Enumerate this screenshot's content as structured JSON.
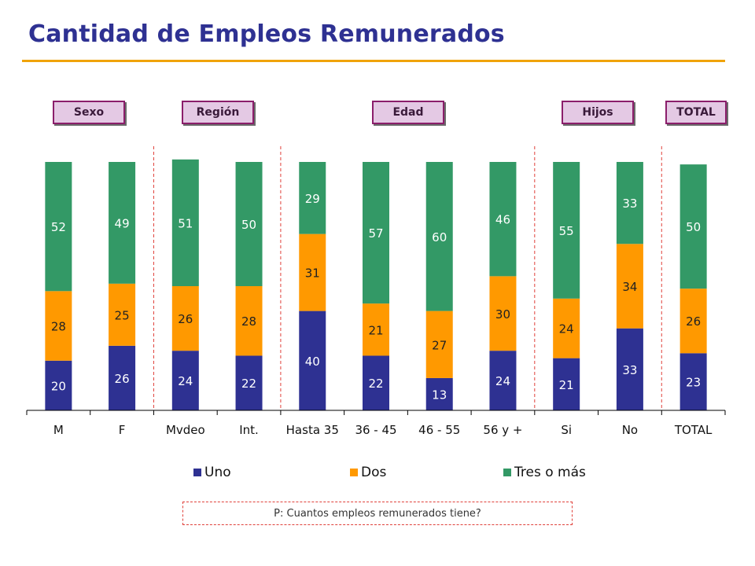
{
  "title": "Cantidad de Empleos Remunerados",
  "groups": [
    "Sexo",
    "Región",
    "Edad",
    "Hijos",
    "TOTAL"
  ],
  "question": "P: Cuantos empleos remunerados tiene?",
  "colors": {
    "title": "#2E3192",
    "rule": "#F0A30A",
    "uno": "#2E3192",
    "dos": "#FF9900",
    "tres": "#339966",
    "divider": "#E0403A",
    "group_label_bg": "#E4C9E4",
    "group_label_border": "#8B1E6B"
  },
  "chart_data": {
    "type": "bar",
    "stacked": true,
    "categories": [
      "M",
      "F",
      "Mvdeo",
      "Int.",
      "Hasta 35",
      "36 - 45",
      "46 - 55",
      "56 y +",
      "Si",
      "No",
      "TOTAL"
    ],
    "series": [
      {
        "name": "Uno",
        "color": "#2E3192",
        "values": [
          20,
          26,
          24,
          22,
          40,
          22,
          13,
          24,
          21,
          33,
          23
        ]
      },
      {
        "name": "Dos",
        "color": "#FF9900",
        "values": [
          28,
          25,
          26,
          28,
          31,
          21,
          27,
          30,
          24,
          34,
          26
        ]
      },
      {
        "name": "Tres o más",
        "color": "#339966",
        "values": [
          52,
          49,
          51,
          50,
          29,
          57,
          60,
          46,
          55,
          33,
          50
        ]
      }
    ],
    "legend_position": "bottom",
    "grid": false,
    "ylim": [
      0,
      100
    ]
  }
}
